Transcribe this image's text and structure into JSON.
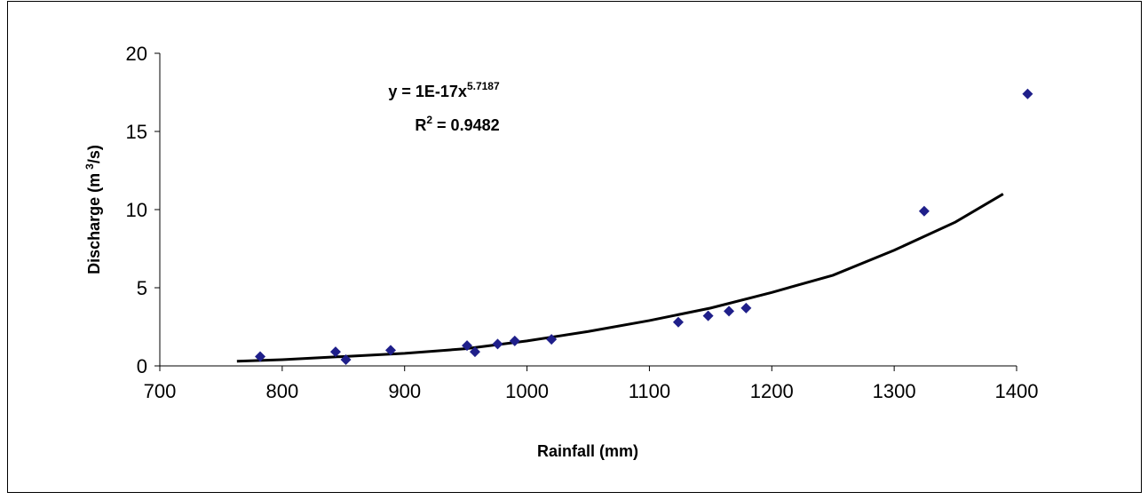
{
  "chart_data": {
    "type": "scatter",
    "xlabel": {
      "text": "Rainfall (mm)"
    },
    "ylabel": {
      "text": "Discharge (m",
      "superscript": "3",
      "suffix": "/s)"
    },
    "x": [
      782,
      843.6,
      852,
      888.6,
      951,
      957.5,
      976,
      990,
      1020,
      1123.6,
      1148,
      1165,
      1179,
      1324.5,
      1409
    ],
    "values": [
      0.6,
      0.9,
      0.4,
      1.0,
      1.3,
      0.9,
      1.4,
      1.6,
      1.7,
      2.8,
      3.2,
      3.5,
      3.7,
      9.9,
      17.4
    ],
    "color": "#1f1f8a",
    "trendline": {
      "color": "#000000",
      "x": [
        763,
        800,
        850,
        900,
        950,
        1000,
        1050,
        1100,
        1150,
        1200,
        1250,
        1300,
        1350,
        1389
      ],
      "values": [
        0.3,
        0.4,
        0.6,
        0.8,
        1.1,
        1.6,
        2.2,
        2.9,
        3.7,
        4.7,
        5.8,
        7.4,
        9.2,
        11.0
      ]
    },
    "annotations": [
      {
        "text": "y = 1E-17x",
        "superscript": "5.7187"
      },
      {
        "text": "R",
        "superscript": "2",
        "suffix": " = 0.9482"
      }
    ],
    "xlim": [
      700,
      1400
    ],
    "xticks": [
      700,
      800,
      900,
      1000,
      1100,
      1200,
      1300,
      1400
    ],
    "ylim": [
      0,
      20
    ],
    "yticks": [
      0,
      5,
      10,
      15,
      20
    ]
  }
}
